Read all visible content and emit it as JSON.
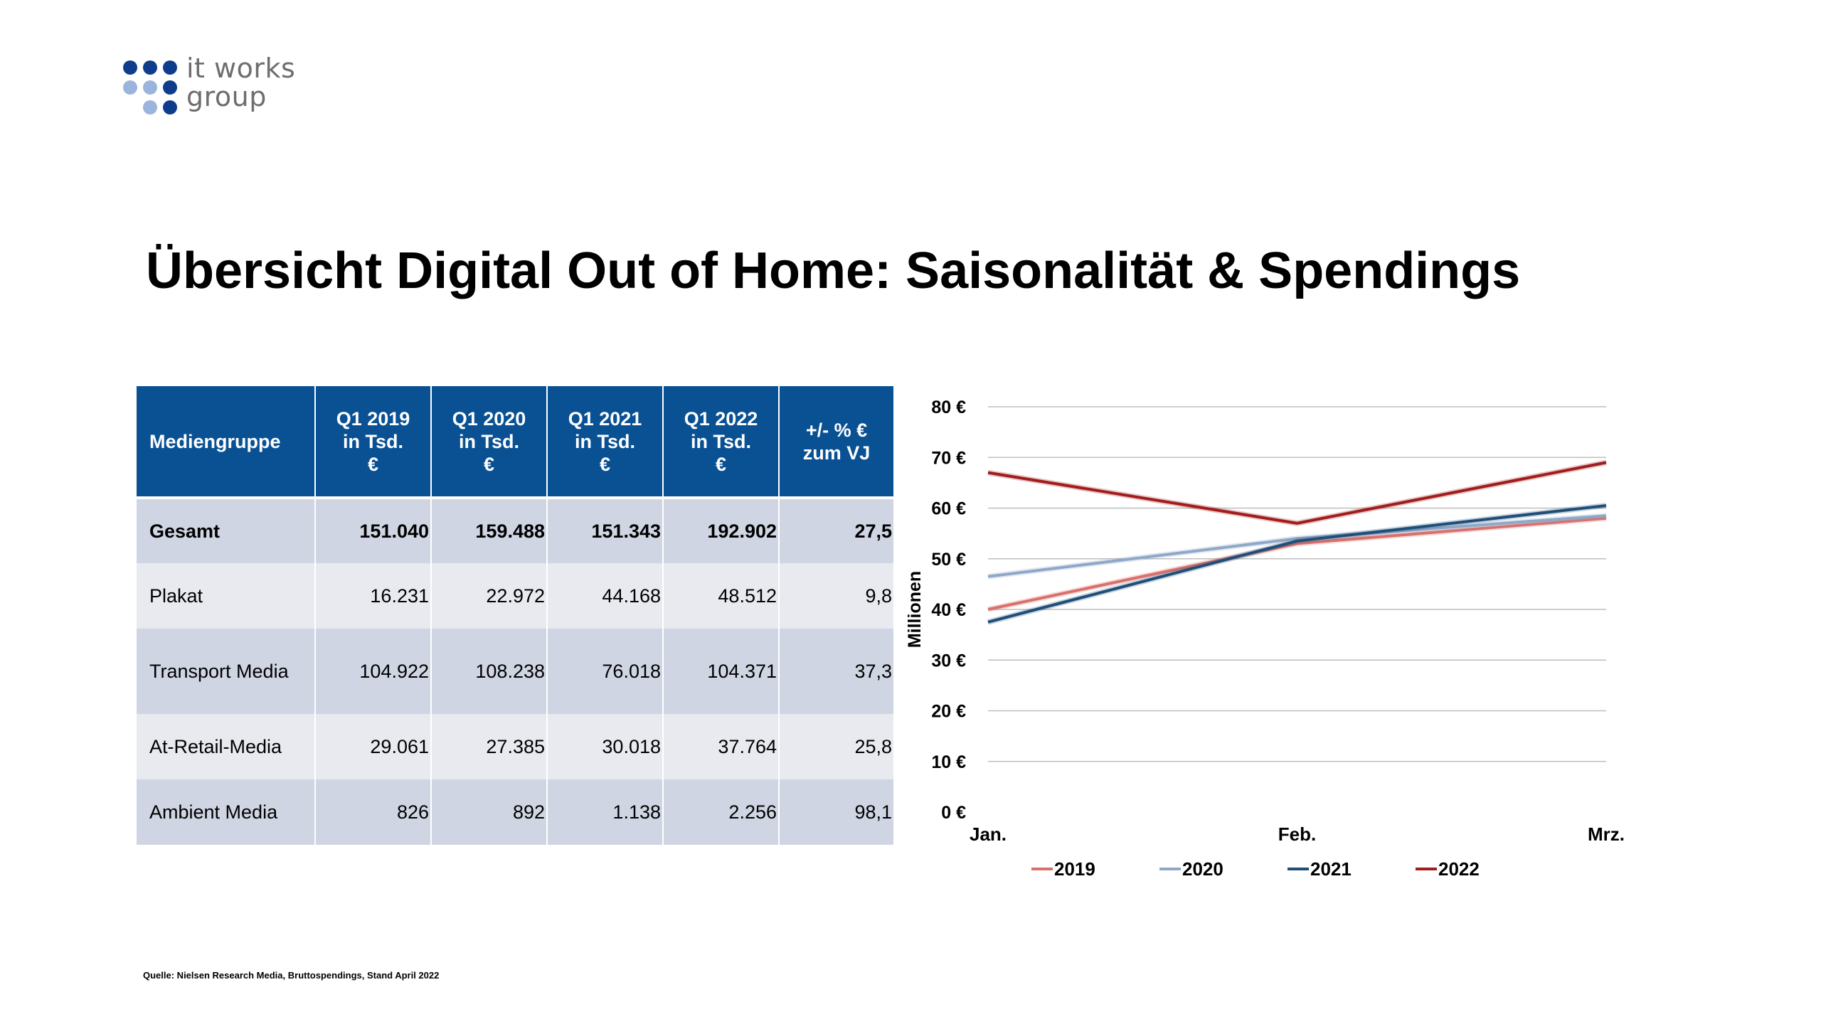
{
  "logo": {
    "line1": "it works",
    "line2": "group"
  },
  "title": "Übersicht Digital Out of Home: Saisonalität & Spendings",
  "table": {
    "headers": [
      [
        "Mediengruppe"
      ],
      [
        "Q1 2019",
        "in Tsd.",
        "€"
      ],
      [
        "Q1 2020",
        "in Tsd.",
        "€"
      ],
      [
        "Q1 2021",
        "in Tsd.",
        "€"
      ],
      [
        "Q1 2022",
        "in Tsd.",
        "€"
      ],
      [
        "+/- % €",
        "zum VJ"
      ]
    ],
    "rows": [
      [
        "Gesamt",
        "151.040",
        "159.488",
        "151.343",
        "192.902",
        "27,5"
      ],
      [
        "Plakat",
        "16.231",
        "22.972",
        "44.168",
        "48.512",
        "9,8"
      ],
      [
        "Transport Media",
        "104.922",
        "108.238",
        "76.018",
        "104.371",
        "37,3"
      ],
      [
        "At-Retail-Media",
        "29.061",
        "27.385",
        "30.018",
        "37.764",
        "25,8"
      ],
      [
        "Ambient Media",
        "826",
        "892",
        "1.138",
        "2.256",
        "98,1"
      ]
    ]
  },
  "chart_data": {
    "type": "line",
    "title": "",
    "xlabel": "",
    "ylabel": "Millionen",
    "categories": [
      "Jan.",
      "Feb.",
      "Mrz."
    ],
    "ylim": [
      0,
      80
    ],
    "yticks": [
      0,
      10,
      20,
      30,
      40,
      50,
      60,
      70,
      80
    ],
    "ytick_labels": [
      "0 €",
      "10 €",
      "20 €",
      "30 €",
      "40 €",
      "50 €",
      "60 €",
      "70 €",
      "80 €"
    ],
    "grid": true,
    "legend_position": "bottom",
    "series": [
      {
        "name": "2019",
        "color": "#d9706b",
        "values": [
          40,
          53,
          58
        ]
      },
      {
        "name": "2020",
        "color": "#8fa8c8",
        "values": [
          46.5,
          54,
          58.5
        ]
      },
      {
        "name": "2021",
        "color": "#1f4e79",
        "values": [
          37.5,
          53.5,
          60.5
        ]
      },
      {
        "name": "2022",
        "color": "#a11d1d",
        "values": [
          67,
          57,
          69
        ]
      }
    ]
  },
  "source": "Quelle: Nielsen Research Media, Bruttospendings,  Stand April 2022"
}
